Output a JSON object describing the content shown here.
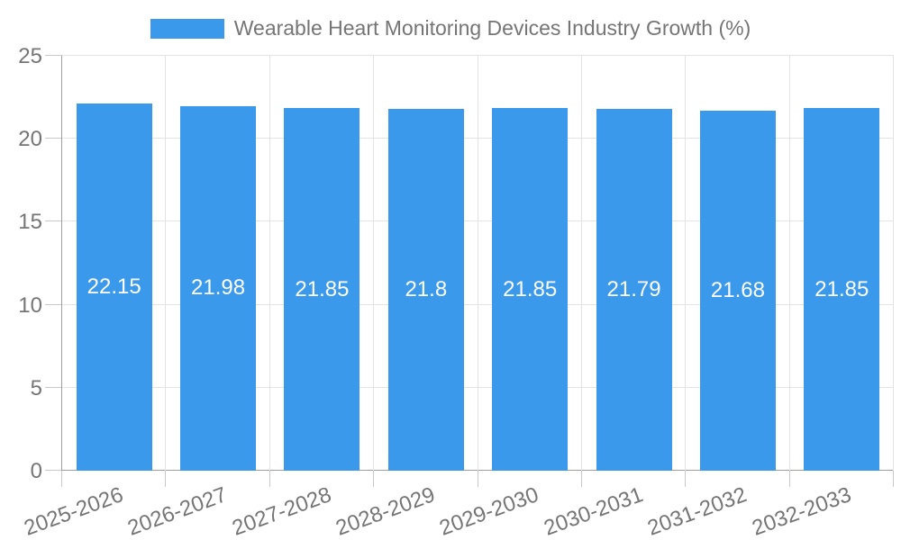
{
  "chart_data": {
    "type": "bar",
    "title": "Wearable Heart Monitoring Devices Industry Growth (%)",
    "legend": {
      "position": "top",
      "label": "Wearable Heart Monitoring Devices Industry Growth (%)"
    },
    "categories": [
      "2025-2026",
      "2026-2027",
      "2027-2028",
      "2028-2029",
      "2029-2030",
      "2030-2031",
      "2031-2032",
      "2032-2033"
    ],
    "series": [
      {
        "name": "Wearable Heart Monitoring Devices Industry Growth (%)",
        "values": [
          22.15,
          21.98,
          21.85,
          21.8,
          21.85,
          21.79,
          21.68,
          21.85
        ],
        "color": "#3b99ec"
      }
    ],
    "value_labels": [
      "22.15",
      "21.98",
      "21.85",
      "21.8",
      "21.85",
      "21.79",
      "21.68",
      "21.85"
    ],
    "xlabel": "",
    "ylabel": "",
    "ylim": [
      0,
      25
    ],
    "yticks": [
      0,
      5,
      10,
      15,
      20,
      25
    ],
    "grid": true,
    "x_label_rotation_deg": -20
  },
  "colors": {
    "bar": "#3b99ec",
    "axis_label": "#757575",
    "value_label": "#ffffff",
    "gridline": "#e3e3e3",
    "axis_line": "#9e9e9e",
    "tick": "#c9c9c9",
    "background": "#ffffff"
  }
}
